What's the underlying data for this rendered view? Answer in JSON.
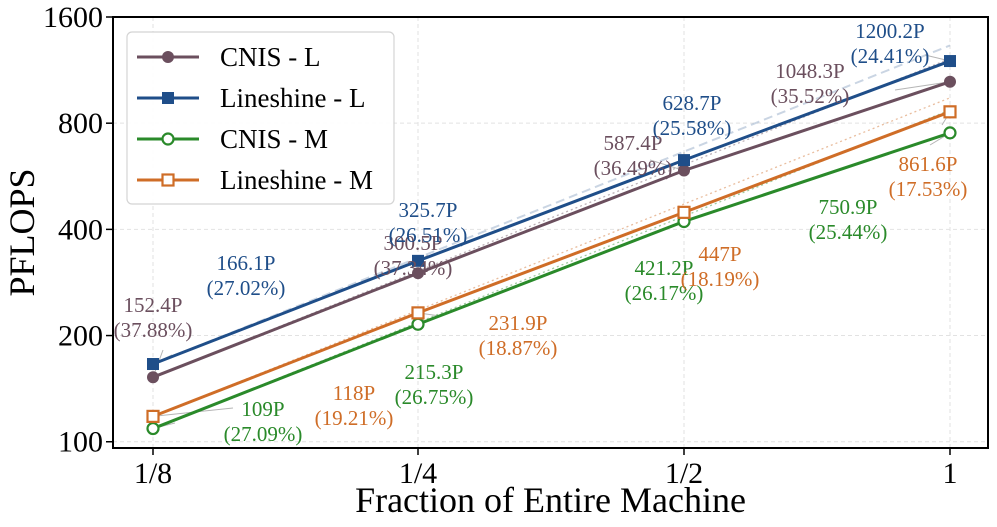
{
  "chart_data": {
    "type": "line",
    "title": "",
    "xlabel": "Fraction of Entire Machine",
    "ylabel": "PFLOPS",
    "y_scale": "log2",
    "ylim": [
      96,
      1600
    ],
    "x_categories": [
      "1/8",
      "1/4",
      "1/2",
      "1"
    ],
    "yticks": [
      {
        "value": 100,
        "label": "100"
      },
      {
        "value": 200,
        "label": "200"
      },
      {
        "value": 400,
        "label": "400"
      },
      {
        "value": 800,
        "label": "800"
      },
      {
        "value": 1600,
        "label": "1600"
      }
    ],
    "grid": true,
    "legend_position": "top-left",
    "series": [
      {
        "name": "CNIS - L",
        "marker": "circle-filled",
        "color": "#6b4f5e",
        "values": [
          152.4,
          300.5,
          587.4,
          1048.3
        ],
        "labels": [
          "152.4P\n(37.88%)",
          "300.5P\n(37.34%)",
          "587.4P\n(36.49%)",
          "1048.3P\n(35.52%)"
        ]
      },
      {
        "name": "Lineshine - L",
        "marker": "square-filled",
        "color": "#1f4e89",
        "values": [
          166.1,
          325.7,
          628.7,
          1200.2
        ],
        "labels": [
          "166.1P\n(27.02%)",
          "325.7P\n(26.51%)",
          "628.7P\n(25.58%)",
          "1200.2P\n(24.41%)"
        ]
      },
      {
        "name": "CNIS - M",
        "marker": "circle-open",
        "color": "#2a8a2a",
        "values": [
          109,
          215.3,
          421.2,
          750.9
        ],
        "labels": [
          "109P\n(27.09%)",
          "215.3P\n(26.75%)",
          "421.2P\n(26.17%)",
          "750.9P\n(25.44%)"
        ]
      },
      {
        "name": "Lineshine - M",
        "marker": "square-open",
        "color": "#cf6d27",
        "values": [
          118,
          231.9,
          447,
          861.6
        ],
        "labels": [
          "118P\n(19.21%)",
          "231.9P\n(18.87%)",
          "447P\n(18.19%)",
          "861.6P\n(17.53%)"
        ]
      }
    ]
  }
}
